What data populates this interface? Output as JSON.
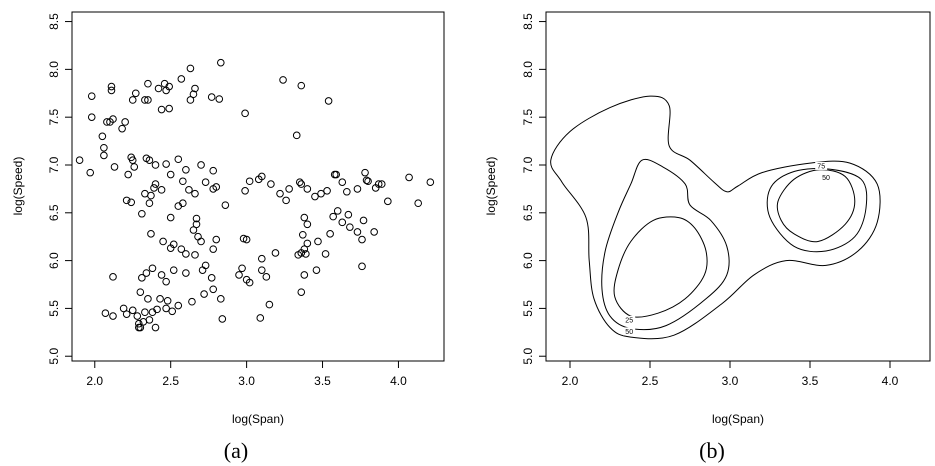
{
  "chart_data": [
    {
      "type": "scatter",
      "caption": "(a)",
      "xlabel": "log(Span)",
      "ylabel": "log(Speed)",
      "xlim": [
        1.85,
        4.3
      ],
      "ylim": [
        4.95,
        8.6
      ],
      "xticks": [
        "2.0",
        "2.5",
        "3.0",
        "3.5",
        "4.0"
      ],
      "yticks": [
        "5.0",
        "5.5",
        "6.0",
        "6.5",
        "7.0",
        "7.5",
        "8.0",
        "8.5"
      ],
      "grid": false,
      "marker": "open-circle",
      "points": [
        [
          1.98,
          7.72
        ],
        [
          2.11,
          7.78
        ],
        [
          2.11,
          7.82
        ],
        [
          2.08,
          7.45
        ],
        [
          2.1,
          7.45
        ],
        [
          2.12,
          7.48
        ],
        [
          2.2,
          7.45
        ],
        [
          2.18,
          7.38
        ],
        [
          2.25,
          7.68
        ],
        [
          2.27,
          7.75
        ],
        [
          2.33,
          7.68
        ],
        [
          2.35,
          7.68
        ],
        [
          2.35,
          7.85
        ],
        [
          2.42,
          7.8
        ],
        [
          2.46,
          7.85
        ],
        [
          2.47,
          7.78
        ],
        [
          2.49,
          7.82
        ],
        [
          2.44,
          7.58
        ],
        [
          2.49,
          7.59
        ],
        [
          2.57,
          7.9
        ],
        [
          2.63,
          8.01
        ],
        [
          2.63,
          7.68
        ],
        [
          2.65,
          7.74
        ],
        [
          2.66,
          7.8
        ],
        [
          2.77,
          7.71
        ],
        [
          2.82,
          7.69
        ],
        [
          2.83,
          8.07
        ],
        [
          2.99,
          7.54
        ],
        [
          3.24,
          7.89
        ],
        [
          3.36,
          7.83
        ],
        [
          3.33,
          7.31
        ],
        [
          3.54,
          7.67
        ],
        [
          1.98,
          7.5
        ],
        [
          2.06,
          7.1
        ],
        [
          2.06,
          7.18
        ],
        [
          2.05,
          7.3
        ],
        [
          1.9,
          7.05
        ],
        [
          1.97,
          6.92
        ],
        [
          2.13,
          6.98
        ],
        [
          2.24,
          7.08
        ],
        [
          2.25,
          7.05
        ],
        [
          2.26,
          6.98
        ],
        [
          2.34,
          7.07
        ],
        [
          2.36,
          7.05
        ],
        [
          2.4,
          7.0
        ],
        [
          2.47,
          7.01
        ],
        [
          2.55,
          7.06
        ],
        [
          2.6,
          6.95
        ],
        [
          2.7,
          7.0
        ],
        [
          2.78,
          6.94
        ],
        [
          2.22,
          6.9
        ],
        [
          2.21,
          6.63
        ],
        [
          2.24,
          6.61
        ],
        [
          2.33,
          6.7
        ],
        [
          2.37,
          6.68
        ],
        [
          2.36,
          6.6
        ],
        [
          2.39,
          6.76
        ],
        [
          2.4,
          6.8
        ],
        [
          2.44,
          6.74
        ],
        [
          2.5,
          6.9
        ],
        [
          2.58,
          6.83
        ],
        [
          2.62,
          6.74
        ],
        [
          2.66,
          6.7
        ],
        [
          2.73,
          6.82
        ],
        [
          2.78,
          6.75
        ],
        [
          2.8,
          6.77
        ],
        [
          2.86,
          6.58
        ],
        [
          2.99,
          6.73
        ],
        [
          3.02,
          6.83
        ],
        [
          3.08,
          6.85
        ],
        [
          3.1,
          6.88
        ],
        [
          3.16,
          6.8
        ],
        [
          3.22,
          6.7
        ],
        [
          3.26,
          6.63
        ],
        [
          3.28,
          6.75
        ],
        [
          3.35,
          6.82
        ],
        [
          3.36,
          6.8
        ],
        [
          3.4,
          6.75
        ],
        [
          3.45,
          6.67
        ],
        [
          3.49,
          6.7
        ],
        [
          3.53,
          6.73
        ],
        [
          3.58,
          6.9
        ],
        [
          3.59,
          6.9
        ],
        [
          3.63,
          6.82
        ],
        [
          3.66,
          6.72
        ],
        [
          3.73,
          6.75
        ],
        [
          3.78,
          6.92
        ],
        [
          3.8,
          6.83
        ],
        [
          3.85,
          6.76
        ],
        [
          3.87,
          6.8
        ],
        [
          3.89,
          6.8
        ],
        [
          3.93,
          6.62
        ],
        [
          3.79,
          6.84
        ],
        [
          4.07,
          6.87
        ],
        [
          4.13,
          6.6
        ],
        [
          4.21,
          6.82
        ],
        [
          2.5,
          6.45
        ],
        [
          2.55,
          6.57
        ],
        [
          2.58,
          6.6
        ],
        [
          2.65,
          6.32
        ],
        [
          2.67,
          6.38
        ],
        [
          2.67,
          6.44
        ],
        [
          2.31,
          6.49
        ],
        [
          2.37,
          6.28
        ],
        [
          3.38,
          6.45
        ],
        [
          3.4,
          6.38
        ],
        [
          3.55,
          6.28
        ],
        [
          3.57,
          6.46
        ],
        [
          3.6,
          6.52
        ],
        [
          3.63,
          6.4
        ],
        [
          3.67,
          6.48
        ],
        [
          3.68,
          6.35
        ],
        [
          3.73,
          6.3
        ],
        [
          3.77,
          6.42
        ],
        [
          3.84,
          6.3
        ],
        [
          3.47,
          6.2
        ],
        [
          3.76,
          6.22
        ],
        [
          2.45,
          6.2
        ],
        [
          2.5,
          6.13
        ],
        [
          2.52,
          6.17
        ],
        [
          2.57,
          6.12
        ],
        [
          2.6,
          6.07
        ],
        [
          2.66,
          6.06
        ],
        [
          2.7,
          6.2
        ],
        [
          2.68,
          6.25
        ],
        [
          2.78,
          6.12
        ],
        [
          2.8,
          6.22
        ],
        [
          2.98,
          6.23
        ],
        [
          3.0,
          6.22
        ],
        [
          3.1,
          6.02
        ],
        [
          3.19,
          6.08
        ],
        [
          3.34,
          6.06
        ],
        [
          3.36,
          6.08
        ],
        [
          3.37,
          6.27
        ],
        [
          3.38,
          6.12
        ],
        [
          3.39,
          6.07
        ],
        [
          3.4,
          6.18
        ],
        [
          3.46,
          5.9
        ],
        [
          3.52,
          6.07
        ],
        [
          3.76,
          5.94
        ],
        [
          2.12,
          5.83
        ],
        [
          2.31,
          5.82
        ],
        [
          2.34,
          5.87
        ],
        [
          2.38,
          5.92
        ],
        [
          2.44,
          5.85
        ],
        [
          2.47,
          5.78
        ],
        [
          2.52,
          5.9
        ],
        [
          2.6,
          5.87
        ],
        [
          2.71,
          5.9
        ],
        [
          2.73,
          5.95
        ],
        [
          2.77,
          5.82
        ],
        [
          2.95,
          5.85
        ],
        [
          2.97,
          5.92
        ],
        [
          3.0,
          5.8
        ],
        [
          3.02,
          5.77
        ],
        [
          3.1,
          5.9
        ],
        [
          3.13,
          5.83
        ],
        [
          3.38,
          5.85
        ],
        [
          3.36,
          5.67
        ],
        [
          2.3,
          5.67
        ],
        [
          2.35,
          5.6
        ],
        [
          2.43,
          5.6
        ],
        [
          2.48,
          5.58
        ],
        [
          2.55,
          5.53
        ],
        [
          2.64,
          5.57
        ],
        [
          2.72,
          5.65
        ],
        [
          2.78,
          5.7
        ],
        [
          2.83,
          5.6
        ],
        [
          3.15,
          5.54
        ],
        [
          2.07,
          5.45
        ],
        [
          2.12,
          5.42
        ],
        [
          2.19,
          5.5
        ],
        [
          2.21,
          5.44
        ],
        [
          2.25,
          5.48
        ],
        [
          2.28,
          5.42
        ],
        [
          2.33,
          5.46
        ],
        [
          2.38,
          5.46
        ],
        [
          2.41,
          5.49
        ],
        [
          2.47,
          5.5
        ],
        [
          2.51,
          5.47
        ],
        [
          2.29,
          5.34
        ],
        [
          2.29,
          5.3
        ],
        [
          2.3,
          5.3
        ],
        [
          2.32,
          5.36
        ],
        [
          2.36,
          5.38
        ],
        [
          2.4,
          5.3
        ],
        [
          2.84,
          5.39
        ],
        [
          3.09,
          5.4
        ]
      ]
    },
    {
      "type": "contour",
      "caption": "(b)",
      "xlabel": "log(Span)",
      "ylabel": "log(Speed)",
      "xlim": [
        1.85,
        4.25
      ],
      "ylim": [
        4.95,
        8.6
      ],
      "xticks": [
        "2.0",
        "2.5",
        "3.0",
        "3.5",
        "4.0"
      ],
      "yticks": [
        "5.0",
        "5.5",
        "6.0",
        "6.5",
        "7.0",
        "7.5",
        "8.0",
        "8.5"
      ],
      "grid": false,
      "contours": [
        {
          "level": "75",
          "paths": [
            [
              [
                2.38,
                5.42
              ],
              [
                2.55,
                5.45
              ],
              [
                2.72,
                5.6
              ],
              [
                2.84,
                5.85
              ],
              [
                2.85,
                6.1
              ],
              [
                2.78,
                6.34
              ],
              [
                2.68,
                6.45
              ],
              [
                2.52,
                6.42
              ],
              [
                2.38,
                6.2
              ],
              [
                2.3,
                5.9
              ],
              [
                2.28,
                5.62
              ],
              [
                2.38,
                5.42
              ]
            ],
            [
              [
                3.4,
                6.28
              ],
              [
                3.55,
                6.2
              ],
              [
                3.72,
                6.38
              ],
              [
                3.78,
                6.62
              ],
              [
                3.72,
                6.88
              ],
              [
                3.56,
                6.95
              ],
              [
                3.4,
                6.85
              ],
              [
                3.3,
                6.62
              ],
              [
                3.32,
                6.42
              ],
              [
                3.4,
                6.28
              ]
            ]
          ]
        },
        {
          "level": "50",
          "paths": [
            [
              [
                2.38,
                5.29
              ],
              [
                2.6,
                5.32
              ],
              [
                2.85,
                5.6
              ],
              [
                2.98,
                5.85
              ],
              [
                2.98,
                6.15
              ],
              [
                2.88,
                6.42
              ],
              [
                2.75,
                6.58
              ],
              [
                2.72,
                6.8
              ],
              [
                2.58,
                6.98
              ],
              [
                2.45,
                7.05
              ],
              [
                2.38,
                6.8
              ],
              [
                2.3,
                6.5
              ],
              [
                2.22,
                6.1
              ],
              [
                2.2,
                5.7
              ],
              [
                2.25,
                5.42
              ],
              [
                2.38,
                5.29
              ]
            ],
            [
              [
                3.25,
                6.45
              ],
              [
                3.4,
                6.15
              ],
              [
                3.6,
                6.1
              ],
              [
                3.78,
                6.25
              ],
              [
                3.85,
                6.55
              ],
              [
                3.82,
                6.85
              ],
              [
                3.6,
                6.96
              ],
              [
                3.38,
                6.92
              ],
              [
                3.25,
                6.75
              ],
              [
                3.25,
                6.45
              ]
            ]
          ]
        },
        {
          "level": "25",
          "paths": [
            [
              [
                2.38,
                5.2
              ],
              [
                2.65,
                5.22
              ],
              [
                2.95,
                5.55
              ],
              [
                3.15,
                5.85
              ],
              [
                3.35,
                6.0
              ],
              [
                3.6,
                5.95
              ],
              [
                3.8,
                6.1
              ],
              [
                3.92,
                6.4
              ],
              [
                3.92,
                6.8
              ],
              [
                3.75,
                7.02
              ],
              [
                3.5,
                7.02
              ],
              [
                3.2,
                6.92
              ],
              [
                3.05,
                6.78
              ],
              [
                2.98,
                6.72
              ],
              [
                2.9,
                6.82
              ],
              [
                2.75,
                7.05
              ],
              [
                2.62,
                7.2
              ],
              [
                2.62,
                7.62
              ],
              [
                2.5,
                7.72
              ],
              [
                2.25,
                7.6
              ],
              [
                2.0,
                7.35
              ],
              [
                1.88,
                7.05
              ],
              [
                1.95,
                6.82
              ],
              [
                2.1,
                6.45
              ],
              [
                2.12,
                6.0
              ],
              [
                2.15,
                5.6
              ],
              [
                2.25,
                5.3
              ],
              [
                2.38,
                5.2
              ]
            ]
          ]
        }
      ],
      "contour_labels": [
        {
          "text": "75",
          "x": 3.57,
          "y": 6.99
        },
        {
          "text": "50",
          "x": 3.6,
          "y": 6.87
        },
        {
          "text": "25",
          "x": 2.37,
          "y": 5.38
        },
        {
          "text": "50",
          "x": 2.37,
          "y": 5.26
        }
      ]
    }
  ]
}
